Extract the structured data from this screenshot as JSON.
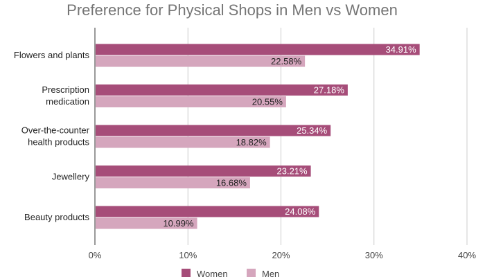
{
  "chart_data": {
    "type": "bar",
    "orientation": "horizontal",
    "title": "Preference for Physical Shops in Men vs Women",
    "xlabel": "",
    "ylabel": "",
    "categories": [
      [
        "Flowers and plants"
      ],
      [
        "Prescription",
        "medication"
      ],
      [
        "Over-the-counter",
        "health products"
      ],
      [
        "Jewellery"
      ],
      [
        "Beauty products"
      ]
    ],
    "series": [
      {
        "name": "Women",
        "color": "#a64d79",
        "values": [
          34.91,
          27.18,
          25.34,
          23.21,
          24.08
        ],
        "labels": [
          "34.91%",
          "27.18%",
          "25.34%",
          "23.21%",
          "24.08%"
        ]
      },
      {
        "name": "Men",
        "color": "#d5a6bd",
        "values": [
          22.58,
          20.55,
          18.82,
          16.68,
          10.99
        ],
        "labels": [
          "22.58%",
          "20.55%",
          "18.82%",
          "16.68%",
          "10.99%"
        ]
      }
    ],
    "xlim": [
      0,
      40
    ],
    "xticks": [
      0,
      10,
      20,
      30,
      40
    ],
    "xtick_labels": [
      "0%",
      "10%",
      "20%",
      "30%",
      "40%"
    ],
    "grid": true,
    "legend_position": "bottom"
  }
}
